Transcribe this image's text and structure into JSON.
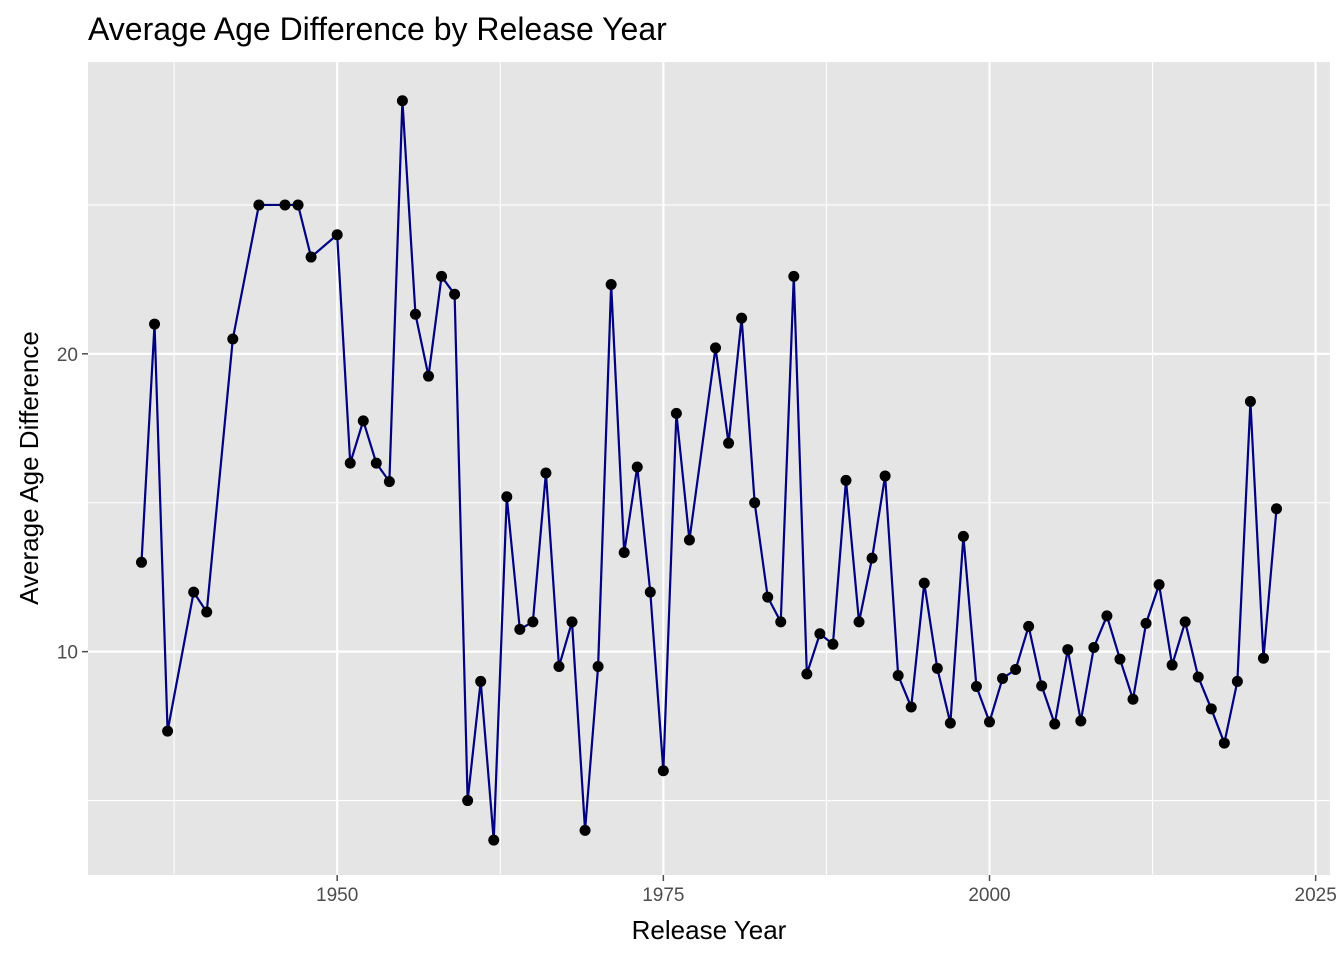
{
  "colors": {
    "panel_background": "#e5e5e5",
    "grid": "#ffffff",
    "line": "#000080",
    "point": "#000000",
    "tick": "#4d4d4d"
  },
  "chart_data": {
    "type": "line",
    "title": "Average Age Difference by Release Year",
    "xlabel": "Release Year",
    "ylabel": "Average Age Difference",
    "xlim": [
      1930.9,
      2026.1
    ],
    "ylim": [
      2.5,
      29.8
    ],
    "x_ticks": [
      1950,
      1975,
      2000,
      2025
    ],
    "y_ticks": [
      10,
      20
    ],
    "x_minor_ticks": [
      1937.5,
      1962.5,
      1987.5,
      2012.5
    ],
    "y_minor_ticks": [
      5,
      15,
      25
    ],
    "grid": true,
    "legend": "none",
    "series": [
      {
        "points": [
          [
            1935,
            13.0
          ],
          [
            1936,
            21.0
          ],
          [
            1937,
            7.33
          ],
          [
            1939,
            12.0
          ],
          [
            1940,
            11.33
          ],
          [
            1942,
            20.5
          ],
          [
            1944,
            25.0
          ],
          [
            1946,
            25.0
          ],
          [
            1947,
            25.0
          ],
          [
            1948,
            23.25
          ],
          [
            1950,
            24.0
          ],
          [
            1951,
            16.33
          ],
          [
            1952,
            17.75
          ],
          [
            1953,
            16.33
          ],
          [
            1954,
            15.71
          ],
          [
            1955,
            28.5
          ],
          [
            1956,
            21.33
          ],
          [
            1957,
            19.25
          ],
          [
            1958,
            22.6
          ],
          [
            1959,
            22.0
          ],
          [
            1960,
            5.0
          ],
          [
            1961,
            9.0
          ],
          [
            1962,
            3.67
          ],
          [
            1963,
            15.2
          ],
          [
            1964,
            10.75
          ],
          [
            1965,
            11.0
          ],
          [
            1966,
            16.0
          ],
          [
            1967,
            9.5
          ],
          [
            1968,
            11.0
          ],
          [
            1969,
            4.0
          ],
          [
            1970,
            9.5
          ],
          [
            1971,
            22.33
          ],
          [
            1972,
            13.33
          ],
          [
            1973,
            16.2
          ],
          [
            1974,
            12.0
          ],
          [
            1975,
            6.0
          ],
          [
            1976,
            18.0
          ],
          [
            1977,
            13.75
          ],
          [
            1979,
            20.2
          ],
          [
            1980,
            17.0
          ],
          [
            1981,
            21.2
          ],
          [
            1982,
            15.0
          ],
          [
            1983,
            11.83
          ],
          [
            1984,
            11.0
          ],
          [
            1985,
            22.6
          ],
          [
            1986,
            9.25
          ],
          [
            1987,
            10.6
          ],
          [
            1988,
            10.25
          ],
          [
            1989,
            15.75
          ],
          [
            1990,
            11.0
          ],
          [
            1991,
            13.14
          ],
          [
            1992,
            15.9
          ],
          [
            1993,
            9.2
          ],
          [
            1994,
            8.14
          ],
          [
            1995,
            12.3
          ],
          [
            1996,
            9.44
          ],
          [
            1997,
            7.6
          ],
          [
            1998,
            13.87
          ],
          [
            1999,
            8.83
          ],
          [
            2000,
            7.64
          ],
          [
            2001,
            9.1
          ],
          [
            2002,
            9.4
          ],
          [
            2003,
            10.85
          ],
          [
            2004,
            8.85
          ],
          [
            2005,
            7.57
          ],
          [
            2006,
            10.07
          ],
          [
            2007,
            7.67
          ],
          [
            2008,
            10.14
          ],
          [
            2009,
            11.2
          ],
          [
            2010,
            9.75
          ],
          [
            2011,
            8.4
          ],
          [
            2012,
            10.95
          ],
          [
            2013,
            12.25
          ],
          [
            2014,
            9.55
          ],
          [
            2015,
            11.0
          ],
          [
            2016,
            9.15
          ],
          [
            2017,
            8.08
          ],
          [
            2018,
            6.93
          ],
          [
            2019,
            9.0
          ],
          [
            2020,
            18.4
          ],
          [
            2021,
            9.78
          ],
          [
            2022,
            14.8
          ]
        ]
      }
    ]
  }
}
